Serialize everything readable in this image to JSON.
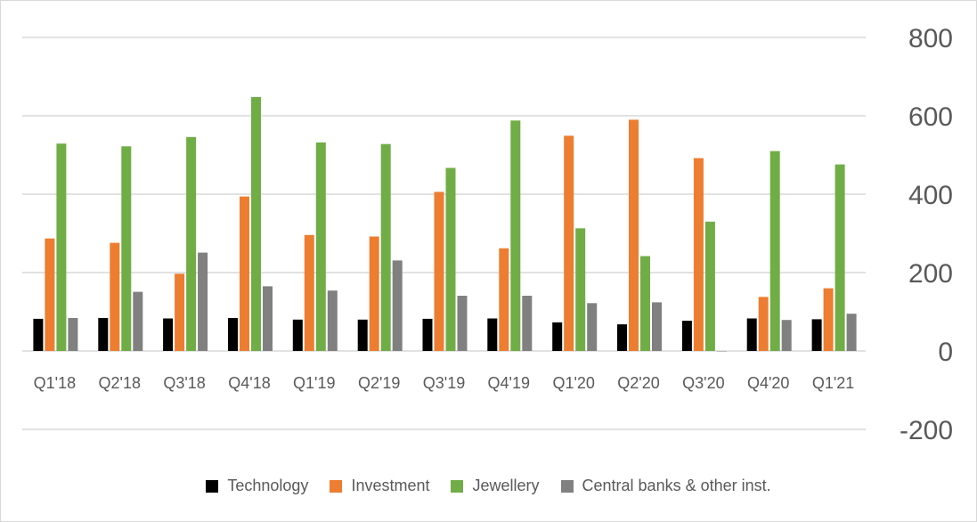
{
  "chart_data": {
    "type": "bar",
    "categories": [
      "Q1'18",
      "Q2'18",
      "Q3'18",
      "Q4'18",
      "Q1'19",
      "Q2'19",
      "Q3'19",
      "Q4'19",
      "Q1'20",
      "Q2'20",
      "Q3'20",
      "Q4'20",
      "Q1'21"
    ],
    "series": [
      {
        "name": "Technology",
        "color": "#000000",
        "values": [
          82,
          84,
          83,
          84,
          80,
          80,
          82,
          83,
          73,
          68,
          77,
          83,
          81
        ]
      },
      {
        "name": "Investment",
        "color": "#ed7d31",
        "values": [
          287,
          276,
          197,
          394,
          296,
          292,
          406,
          262,
          549,
          590,
          492,
          138,
          160
        ]
      },
      {
        "name": "Jewellery",
        "color": "#70ad47",
        "values": [
          529,
          522,
          546,
          648,
          532,
          528,
          467,
          588,
          313,
          242,
          330,
          510,
          476
        ]
      },
      {
        "name": "Central banks & other inst.",
        "color": "#808080",
        "values": [
          84,
          151,
          251,
          165,
          154,
          231,
          141,
          141,
          122,
          124,
          -1,
          79,
          95
        ]
      }
    ],
    "yticks": [
      "800",
      "600",
      "400",
      "200",
      "0",
      "-200"
    ],
    "ylim": [
      -200,
      800
    ],
    "grid": true,
    "legend_position": "bottom",
    "axis_position": "right"
  }
}
